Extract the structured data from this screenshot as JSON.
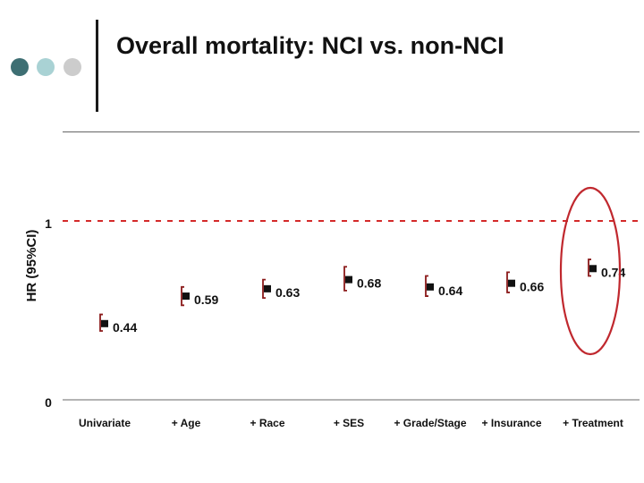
{
  "slide": {
    "title": "Overall mortality: NCI vs. non-NCI",
    "decoration_colors": [
      "#3e6f73",
      "#a9d2d4",
      "#cccccc"
    ]
  },
  "chart_data": {
    "type": "scatter",
    "title": "Overall mortality: NCI vs. non-NCI",
    "ylabel": "HR (95%CI)",
    "xlabel": "",
    "ylim": [
      0,
      1
    ],
    "y_ticks": [
      "0",
      "1"
    ],
    "reference_line": {
      "y": 1,
      "style": "dashed",
      "color": "#d42a2a"
    },
    "categories": [
      "Univariate",
      "+ Age",
      "+ Race",
      "+ SES",
      "+ Grade/Stage",
      "+ Insurance",
      "+ Treatment"
    ],
    "values": [
      0.44,
      0.59,
      0.63,
      0.68,
      0.64,
      0.66,
      0.74
    ],
    "value_labels": [
      "0.44",
      "0.59",
      "0.63",
      "0.68",
      "0.64",
      "0.66",
      "0.74"
    ],
    "ci_lower": [
      0.4,
      0.54,
      0.58,
      0.62,
      0.59,
      0.61,
      0.7
    ],
    "ci_upper": [
      0.49,
      0.64,
      0.68,
      0.75,
      0.7,
      0.72,
      0.79
    ],
    "highlight": {
      "category": "+ Treatment",
      "shape": "ellipse",
      "color": "#c0282e"
    },
    "grid": false,
    "marker_color": "#111111",
    "errorbar_color": "#8b1a1a"
  }
}
